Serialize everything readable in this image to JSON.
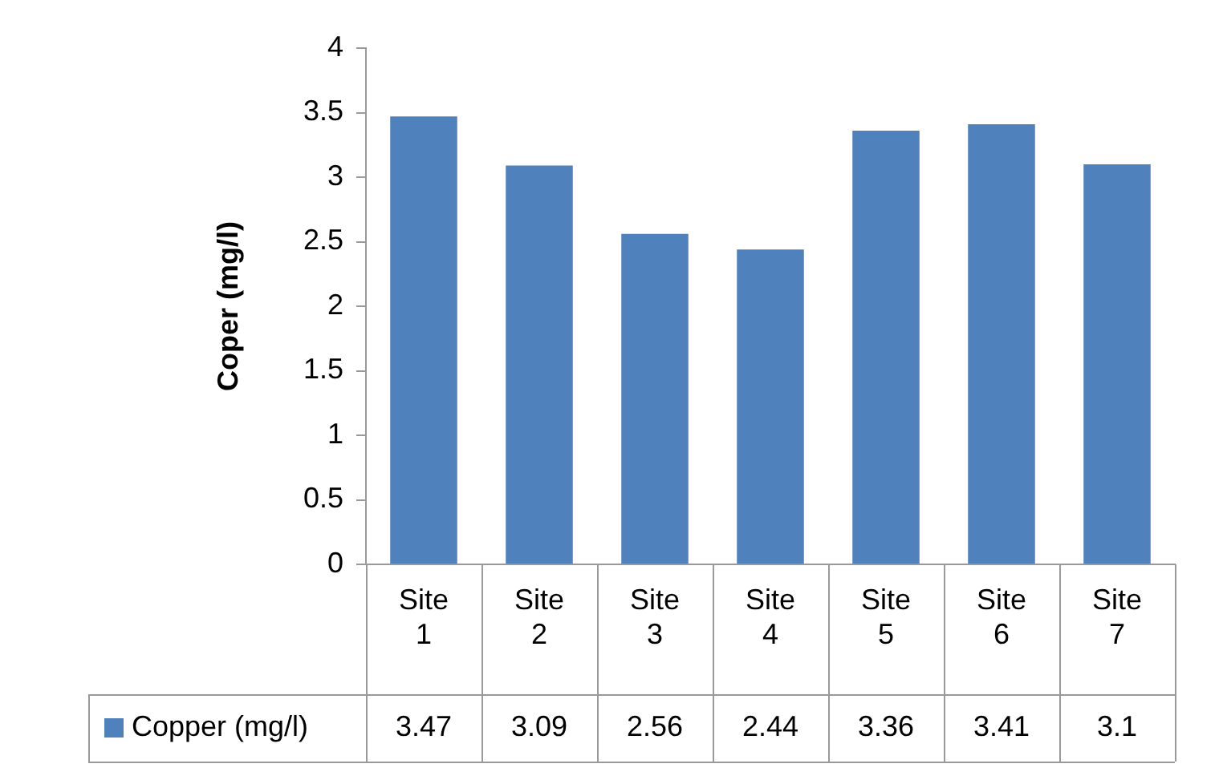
{
  "chart_data": {
    "type": "bar",
    "ylabel": "Coper (mg/l)",
    "categories": [
      "Site 1",
      "Site 2",
      "Site 3",
      "Site 4",
      "Site 5",
      "Site 6",
      "Site 7"
    ],
    "series": [
      {
        "name": "Copper (mg/l)",
        "color": "#4f81bd",
        "values": [
          3.47,
          3.09,
          2.56,
          2.44,
          3.36,
          3.41,
          3.1
        ]
      }
    ],
    "ylim": [
      0,
      4
    ],
    "yticks": [
      0,
      0.5,
      1,
      1.5,
      2,
      2.5,
      3,
      3.5,
      4
    ],
    "grid": false,
    "legend": "bottom",
    "data_labels": true
  }
}
